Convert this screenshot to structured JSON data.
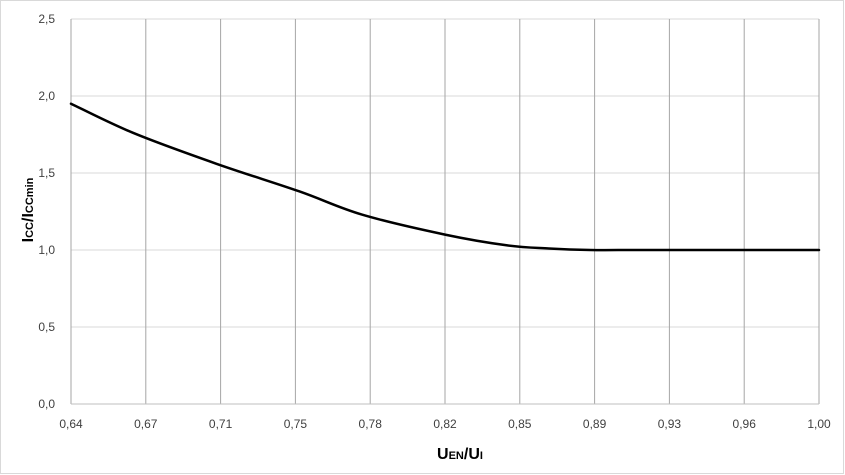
{
  "chart_data": {
    "type": "line",
    "title": "",
    "xlabel": {
      "main1": "U",
      "sub1": "EN",
      "sep": "/",
      "main2": "U",
      "sub2": "I"
    },
    "ylabel": {
      "main1": "I",
      "sub1": "CC",
      "sep": "/",
      "main2": "I",
      "sub2": "CCmin"
    },
    "x_ticks": [
      "0,64",
      "0,67",
      "0,71",
      "0,75",
      "0,78",
      "0,82",
      "0,85",
      "0,89",
      "0,93",
      "0,96",
      "1,00"
    ],
    "y_ticks": [
      "0,0",
      "0,5",
      "1,0",
      "1,5",
      "2,0",
      "2,5"
    ],
    "xlim": [
      0.64,
      1.0
    ],
    "ylim": [
      0,
      2.5
    ],
    "grid": {
      "vertical": true,
      "horizontal": true
    },
    "legend": "none",
    "line_color": "#000000",
    "series": [
      {
        "x": [
          0.64,
          0.67,
          0.71,
          0.75,
          0.78,
          0.82,
          0.85,
          0.87,
          0.89,
          0.91,
          0.93,
          0.96,
          1.0
        ],
        "values": [
          1.95,
          1.76,
          1.56,
          1.38,
          1.23,
          1.1,
          1.03,
          1.01,
          1.0,
          1.0,
          1.0,
          1.0,
          1.0
        ]
      }
    ]
  }
}
